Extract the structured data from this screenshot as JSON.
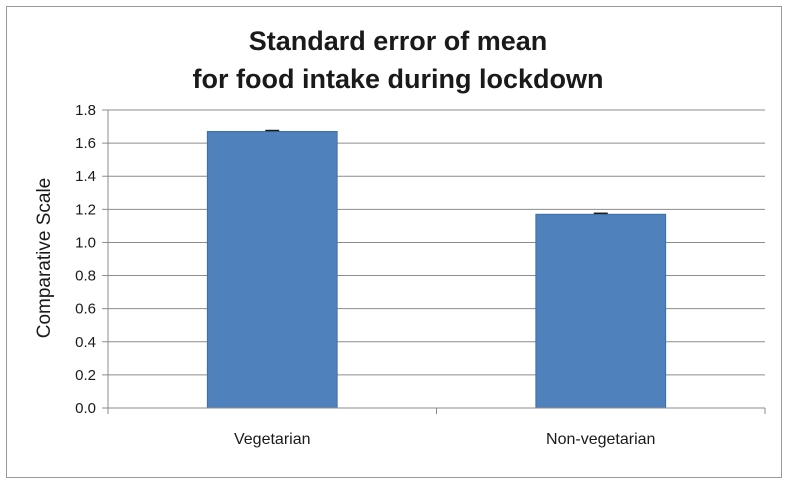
{
  "chart_data": {
    "type": "bar",
    "title": [
      "Standard error of mean",
      "for food intake during lockdown"
    ],
    "xlabel": "",
    "ylabel": "Comparative Scale",
    "categories": [
      "Vegetarian",
      "Non-vegetarian"
    ],
    "values": [
      1.67,
      1.17
    ],
    "ylim": [
      0,
      1.8
    ],
    "yticks": [
      "0.0",
      "0.2",
      "0.4",
      "0.6",
      "0.8",
      "1.0",
      "1.2",
      "1.4",
      "1.6",
      "1.8"
    ],
    "grid": true,
    "legend": "none",
    "bar_color": "#4f81bd",
    "error_bars": true
  }
}
